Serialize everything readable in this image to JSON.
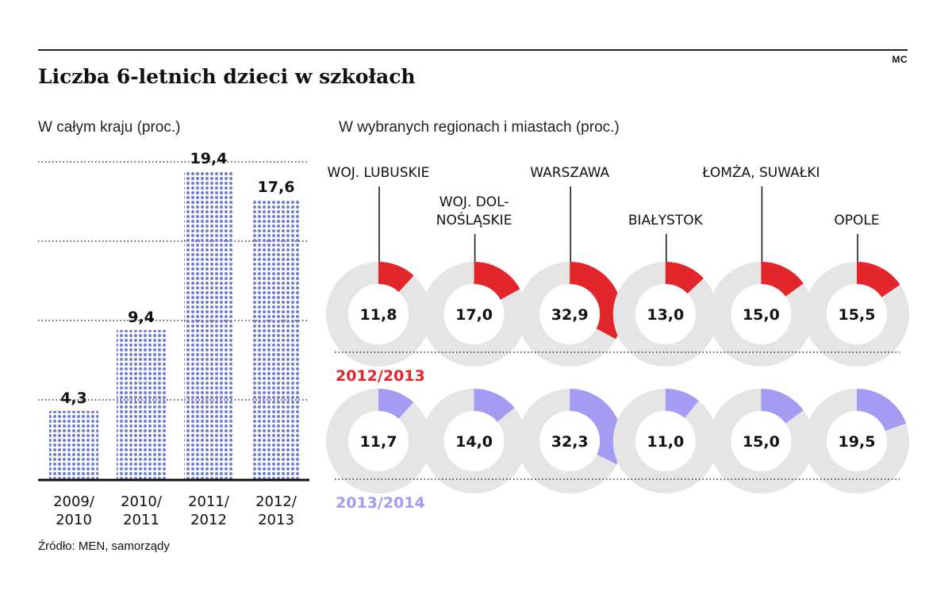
{
  "author": "MC",
  "title": "Liczba 6-letnich dzieci w szkołach",
  "left_subtitle": "W całym kraju (proc.)",
  "right_subtitle": "W wybranych regionach i miastach (proc.)",
  "source": "Źródło: MEN, samorządy",
  "colors": {
    "bar_dot": "#6f7fd6",
    "year1": "#e3262b",
    "year2": "#a49cf3",
    "ring_bg": "#e5e5e5"
  },
  "chart_data": [
    {
      "type": "bar",
      "categories": [
        [
          "2009/",
          "2010"
        ],
        [
          "2010/",
          "2011"
        ],
        [
          "2011/",
          "2012"
        ],
        [
          "2012/",
          "2013"
        ]
      ],
      "values": [
        4.3,
        9.4,
        19.4,
        17.6
      ],
      "value_labels": [
        "4,3",
        "9,4",
        "19,4",
        "17,6"
      ],
      "ylim": [
        0,
        20
      ],
      "grid": [
        5,
        10,
        15,
        20
      ]
    },
    {
      "type": "pie",
      "regions": [
        {
          "label": [
            "WOJ. LUBUSKIE"
          ]
        },
        {
          "label": [
            "WOJ. DOL-",
            "NOŚLĄSKIE"
          ]
        },
        {
          "label": [
            "WARSZAWA"
          ]
        },
        {
          "label": [
            "BIAŁYSTOK"
          ]
        },
        {
          "label": [
            "ŁOMŻA, SUWAŁKI"
          ]
        },
        {
          "label": [
            "OPOLE"
          ]
        }
      ],
      "series": [
        {
          "name": "2012/2013",
          "values": [
            11.8,
            17.0,
            32.9,
            13.0,
            15.0,
            15.5
          ],
          "labels": [
            "11,8",
            "17,0",
            "32,9",
            "13,0",
            "15,0",
            "15,5"
          ]
        },
        {
          "name": "2013/2014",
          "values": [
            11.7,
            14.0,
            32.3,
            11.0,
            15.0,
            19.5
          ],
          "labels": [
            "11,7",
            "14,0",
            "32,3",
            "11,0",
            "15,0",
            "19,5"
          ]
        }
      ]
    }
  ]
}
